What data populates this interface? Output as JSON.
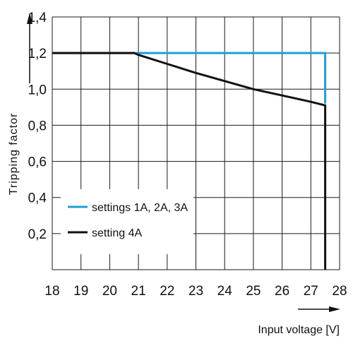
{
  "chart_data": {
    "type": "line",
    "xlabel": "Input voltage [V]",
    "ylabel": "Tripping factor",
    "xlim": [
      18,
      28
    ],
    "ylim": [
      0,
      1.4
    ],
    "x_ticks": [
      "18",
      "19",
      "20",
      "21",
      "22",
      "23",
      "24",
      "25",
      "26",
      "27",
      "28"
    ],
    "y_ticks": [
      "0,2",
      "0,4",
      "0,6",
      "0,8",
      "1,0",
      "1,2",
      "1,4"
    ],
    "grid": true,
    "legend_position": "lower-left",
    "series": [
      {
        "name": "settings 1A, 2A, 3A",
        "color": "#1e9fd4",
        "x": [
          18,
          21,
          27.5,
          27.5
        ],
        "y": [
          1.2,
          1.2,
          1.2,
          0.92
        ]
      },
      {
        "name": "setting 4A",
        "color": "#111111",
        "x": [
          18,
          20.85,
          21,
          22,
          23,
          24,
          25,
          26,
          27,
          27.5,
          27.5
        ],
        "y": [
          1.2,
          1.2,
          1.19,
          1.14,
          1.09,
          1.045,
          1.0,
          0.965,
          0.93,
          0.91,
          0.0
        ]
      }
    ]
  }
}
